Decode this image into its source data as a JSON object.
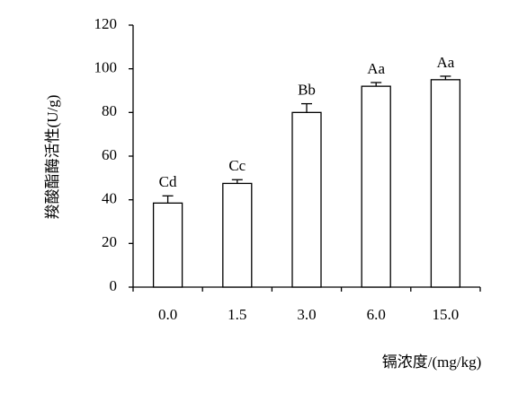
{
  "chart_data": {
    "type": "bar",
    "y_label": "羧酸酯酶活性(U/g)",
    "x_label": "镉浓度/(mg/kg)",
    "categories": [
      "0.0",
      "1.5",
      "3.0",
      "6.0",
      "15.0"
    ],
    "values": [
      38.5,
      47.5,
      80,
      92,
      95
    ],
    "errors": [
      3.3,
      1.7,
      4,
      1.7,
      1.6
    ],
    "annotations": [
      "Cd",
      "Cc",
      "Bb",
      "Aa",
      "Aa"
    ],
    "color": "#ffffff",
    "ylim": [
      0,
      120
    ],
    "yticks": [
      0,
      20,
      40,
      60,
      80,
      100,
      120
    ]
  }
}
